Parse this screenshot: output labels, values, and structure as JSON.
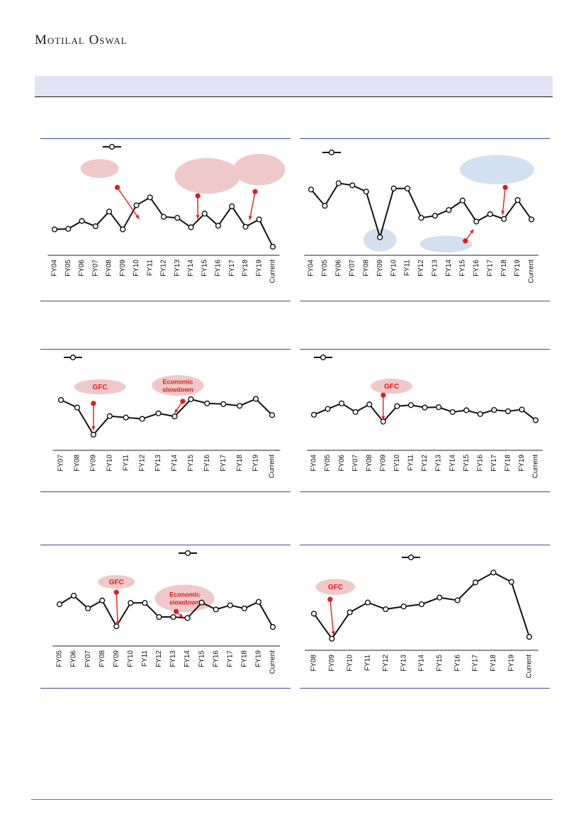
{
  "header": {
    "logo": "Motilal Oswal"
  },
  "colors": {
    "line": "#111111",
    "annotation": "#e31b1b",
    "bubble_red": "#efc9c9",
    "bubble_blue": "#d3e0ef",
    "rule": "#3f4a9a",
    "banner": "#e3e4f5"
  },
  "chart_data": [
    {
      "type": "line",
      "title": "",
      "xlabel": "",
      "ylabel": "",
      "categories": [
        "FY04",
        "FY05",
        "FY06",
        "FY07",
        "FY08",
        "FY09",
        "FY10",
        "FY11",
        "FY12",
        "FY13",
        "FY14",
        "FY15",
        "FY16",
        "FY17",
        "FY18",
        "FY19",
        "Current"
      ],
      "series": [
        {
          "values": [
            24.0,
            24.5,
            32.0,
            27.0,
            41.0,
            24.0,
            47.0,
            54.5,
            36.0,
            35.0,
            26.0,
            39.0,
            27.5,
            46.0,
            26.5,
            33.5,
            7.5
          ]
        }
      ],
      "ylim": [
        0,
        100
      ],
      "annotations": [
        {
          "kind": "arrow",
          "from": [
            4.6,
            64
          ],
          "to": [
            6.2,
            34
          ]
        },
        {
          "kind": "arrow",
          "from": [
            10.5,
            56
          ],
          "to": [
            10.5,
            34
          ]
        },
        {
          "kind": "arrow",
          "from": [
            14.7,
            60
          ],
          "to": [
            14.3,
            33
          ]
        },
        {
          "kind": "bubble",
          "color": "red",
          "cx": 3.3,
          "cy": 82,
          "rx": 1.4,
          "ry": 9
        },
        {
          "kind": "bubble",
          "color": "red",
          "cx": 11.2,
          "cy": 75,
          "rx": 2.4,
          "ry": 17
        },
        {
          "kind": "bubble",
          "color": "red",
          "cx": 15.0,
          "cy": 81,
          "rx": 1.9,
          "ry": 15
        }
      ]
    },
    {
      "type": "line",
      "title": "",
      "xlabel": "",
      "ylabel": "",
      "categories": [
        "FY04",
        "FY05",
        "FY06",
        "FY07",
        "FY08",
        "FY09",
        "FY10",
        "FY11",
        "FY12",
        "FY13",
        "FY14",
        "FY15",
        "FY16",
        "FY17",
        "FY18",
        "FY19",
        "Current"
      ],
      "series": [
        {
          "values": [
            62.0,
            46.5,
            68.0,
            66.0,
            60.0,
            16.5,
            63.0,
            63.0,
            35.0,
            37.0,
            42.5,
            51.5,
            31.5,
            38.5,
            34.0,
            52.0,
            33.5
          ]
        }
      ],
      "ylim": [
        0,
        100
      ],
      "annotations": [
        {
          "kind": "arrow",
          "from": [
            14.1,
            64
          ],
          "to": [
            13.9,
            38
          ]
        },
        {
          "kind": "arrow",
          "from": [
            11.2,
            13
          ],
          "to": [
            11.8,
            24
          ]
        },
        {
          "kind": "bubble",
          "color": "blue",
          "cx": 13.5,
          "cy": 81,
          "rx": 2.7,
          "ry": 14
        },
        {
          "kind": "bubble",
          "color": "blue",
          "cx": 5.0,
          "cy": 14,
          "rx": 1.2,
          "ry": 11
        },
        {
          "kind": "bubble",
          "color": "blue",
          "cx": 9.8,
          "cy": 10,
          "rx": 1.9,
          "ry": 8
        }
      ]
    },
    {
      "type": "line",
      "title": "",
      "xlabel": "",
      "ylabel": "",
      "categories": [
        "FY07",
        "FY08",
        "FY09",
        "FY10",
        "FY11",
        "FY12",
        "FY13",
        "FY14",
        "FY15",
        "FY16",
        "FY17",
        "FY18",
        "FY19",
        "Current"
      ],
      "series": [
        {
          "values": [
            66.0,
            55.0,
            15.5,
            42.5,
            40.5,
            38.5,
            46.5,
            42.0,
            67.0,
            61.0,
            60.0,
            57.5,
            67.5,
            44.0
          ]
        }
      ],
      "ylim": [
        0,
        100
      ],
      "annotations": [
        {
          "kind": "arrow",
          "from": [
            2.0,
            61
          ],
          "to": [
            2.0,
            22
          ]
        },
        {
          "kind": "arrow",
          "from": [
            7.5,
            64
          ],
          "to": [
            7.0,
            47
          ]
        },
        {
          "kind": "bubble",
          "color": "red",
          "cx": 2.4,
          "cy": 85,
          "rx": 1.6,
          "ry": 11,
          "label": "GFC"
        },
        {
          "kind": "bubble",
          "color": "red",
          "cx": 7.2,
          "cy": 87,
          "rx": 1.6,
          "ry": 15,
          "label": "Economic\nslowdown"
        }
      ]
    },
    {
      "type": "line",
      "title": "",
      "xlabel": "",
      "ylabel": "",
      "categories": [
        "FY04",
        "FY05",
        "FY06",
        "FY07",
        "FY08",
        "FY09",
        "FY10",
        "FY11",
        "FY12",
        "FY13",
        "FY14",
        "FY15",
        "FY16",
        "FY17",
        "FY18",
        "FY19",
        "Current"
      ],
      "series": [
        {
          "values": [
            44.5,
            53.0,
            61.0,
            48.5,
            59.5,
            34.5,
            57.0,
            58.5,
            55.0,
            55.5,
            48.5,
            51.0,
            45.5,
            51.5,
            49.5,
            52.0,
            36.5
          ]
        }
      ],
      "ylim": [
        0,
        100
      ],
      "annotations": [
        {
          "kind": "arrow",
          "from": [
            5.0,
            73
          ],
          "to": [
            5.0,
            37
          ]
        },
        {
          "kind": "bubble",
          "color": "red",
          "cx": 5.6,
          "cy": 86,
          "rx": 1.5,
          "ry": 11,
          "label": "GFC"
        }
      ]
    },
    {
      "type": "line",
      "title": "",
      "xlabel": "",
      "ylabel": "",
      "categories": [
        "FY05",
        "FY06",
        "FY07",
        "FY08",
        "FY09",
        "FY10",
        "FY11",
        "FY12",
        "FY13",
        "FY14",
        "FY15",
        "FY16",
        "FY17",
        "FY18",
        "FY19",
        "Current"
      ],
      "series": [
        {
          "values": [
            53.5,
            66.0,
            47.5,
            59.0,
            21.5,
            55.5,
            55.5,
            35.0,
            35.0,
            33.5,
            56.0,
            46.0,
            52.0,
            47.5,
            57.0,
            20.5
          ]
        }
      ],
      "ylim": [
        0,
        100
      ],
      "annotations": [
        {
          "kind": "arrow",
          "from": [
            4.0,
            71
          ],
          "to": [
            4.1,
            23
          ]
        },
        {
          "kind": "arrow",
          "from": [
            8.2,
            43
          ],
          "to": [
            8.7,
            34
          ]
        },
        {
          "kind": "bubble",
          "color": "red",
          "cx": 4.0,
          "cy": 86,
          "rx": 1.3,
          "ry": 10,
          "label": "GFC"
        },
        {
          "kind": "bubble",
          "color": "red",
          "cx": 8.8,
          "cy": 62,
          "rx": 2.1,
          "ry": 20,
          "label": "Economic\nslowdown"
        }
      ]
    },
    {
      "type": "line",
      "title": "",
      "xlabel": "",
      "ylabel": "",
      "categories": [
        "FY08",
        "FY09",
        "FY10",
        "FY11",
        "FY12",
        "FY13",
        "FY14",
        "FY15",
        "FY16",
        "FY17",
        "FY18",
        "FY19",
        "Current"
      ],
      "series": [
        {
          "values": [
            41.0,
            13.0,
            42.5,
            53.5,
            46.0,
            49.0,
            51.5,
            59.0,
            56.0,
            76.0,
            87.0,
            76.5,
            15.0
          ]
        }
      ],
      "ylim": [
        0,
        100
      ],
      "annotations": [
        {
          "kind": "arrow",
          "from": [
            0.9,
            57
          ],
          "to": [
            1.1,
            17
          ]
        },
        {
          "kind": "bubble",
          "color": "red",
          "cx": 1.2,
          "cy": 71,
          "rx": 1.1,
          "ry": 9,
          "label": "GFC"
        }
      ]
    }
  ]
}
